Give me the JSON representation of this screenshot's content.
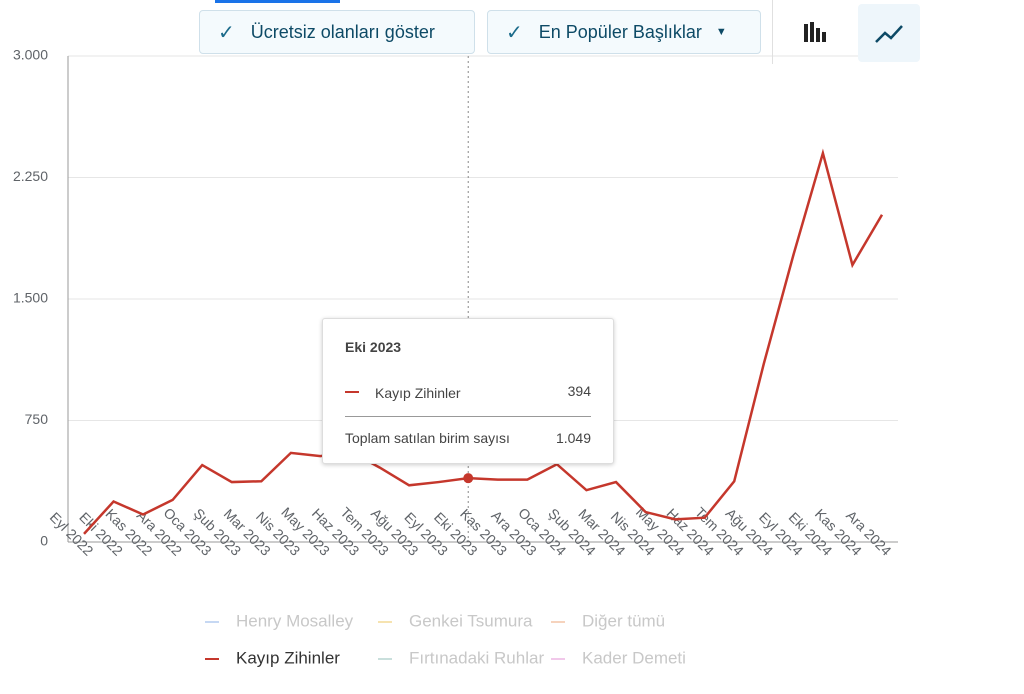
{
  "controls": {
    "free_toggle": "Ücretsiz olanları göster",
    "dropdown": "En Popüler Başlıklar"
  },
  "chart_data": {
    "type": "line",
    "categories": [
      "Eyl 2022",
      "Eki 2022",
      "Kas 2022",
      "Ara 2022",
      "Oca 2023",
      "Şub 2023",
      "Mar 2023",
      "Nis 2023",
      "May 2023",
      "Haz 2023",
      "Tem 2023",
      "Ağu 2023",
      "Eyl 2023",
      "Eki 2023",
      "Kas 2023",
      "Ara 2023",
      "Oca 2024",
      "Şub 2024",
      "Mar 2024",
      "Nis 2024",
      "May 2024",
      "Haz 2024",
      "Tem 2024",
      "Ağu 2024",
      "Eyl 2024",
      "Eki 2024",
      "Kas 2024",
      "Ara 2024"
    ],
    "series": [
      {
        "name": "Kayıp Zihinler",
        "color": "#c5372c",
        "values": [
          50,
          250,
          170,
          260,
          475,
          370,
          375,
          550,
          530,
          560,
          460,
          350,
          370,
          394,
          385,
          385,
          480,
          320,
          370,
          185,
          140,
          150,
          375,
          1100,
          1770,
          2400,
          1710,
          2020
        ]
      }
    ],
    "hidden_series": [
      {
        "name": "Henry Mosalley",
        "color": "#c6d8f3"
      },
      {
        "name": "Genkei Tsumura",
        "color": "#f6e3b0"
      },
      {
        "name": "Diğer tümü",
        "color": "#f6d3bd"
      },
      {
        "name": "Fırtınadaki Ruhlar",
        "color": "#c9dfdc"
      },
      {
        "name": "Kader Demeti",
        "color": "#f1c8ea"
      }
    ],
    "ylim": [
      0,
      3000
    ],
    "yticks": [
      0,
      750,
      {
        "value": 1500,
        "label": "1.500"
      },
      {
        "value": 2250,
        "label": "2.250"
      },
      {
        "value": 3000,
        "label": "3.000"
      }
    ],
    "grid": true,
    "tooltip": {
      "label": "Toplam satılan birim sayısı",
      "value": 1049,
      "value_label": "1.049"
    }
  }
}
